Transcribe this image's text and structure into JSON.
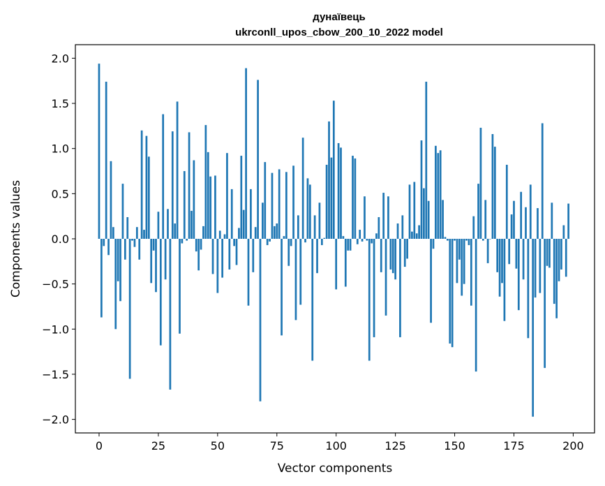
{
  "chart_data": {
    "type": "bar",
    "title": "дунаївець",
    "subtitle": "ukrconll_upos_cbow_200_10_2022 model",
    "xlabel": "Vector components",
    "ylabel": "Components values",
    "xlim": [
      -10,
      209
    ],
    "ylim": [
      -2.15,
      2.15
    ],
    "xticks": [
      0,
      25,
      50,
      75,
      100,
      125,
      150,
      175,
      200
    ],
    "yticks": [
      -2.0,
      -1.5,
      -1.0,
      -0.5,
      0.0,
      0.5,
      1.0,
      1.5,
      2.0
    ],
    "bar_color": "#1f77b4",
    "grid": false,
    "values": [
      1.94,
      -0.87,
      -0.08,
      1.74,
      -0.18,
      0.86,
      0.13,
      -1.0,
      -0.47,
      -0.69,
      0.61,
      -0.23,
      0.24,
      -1.55,
      -0.02,
      -0.09,
      0.13,
      -0.23,
      1.2,
      0.1,
      1.14,
      0.91,
      -0.49,
      -0.13,
      -0.59,
      0.3,
      -1.18,
      1.38,
      -0.45,
      0.33,
      -1.67,
      1.19,
      0.17,
      1.52,
      -1.05,
      -0.05,
      0.75,
      -0.02,
      1.18,
      0.31,
      0.87,
      -0.14,
      -0.35,
      -0.12,
      0.14,
      1.26,
      0.96,
      0.69,
      -0.39,
      0.7,
      -0.6,
      0.09,
      -0.43,
      0.05,
      0.95,
      -0.34,
      0.55,
      -0.08,
      -0.29,
      0.12,
      0.92,
      0.32,
      1.89,
      -0.74,
      0.55,
      -0.37,
      0.13,
      1.76,
      -1.8,
      0.4,
      0.85,
      -0.07,
      -0.03,
      0.73,
      0.14,
      0.17,
      0.77,
      -1.07,
      0.03,
      0.74,
      -0.3,
      -0.08,
      0.81,
      -0.9,
      0.26,
      -0.73,
      1.12,
      -0.04,
      0.67,
      0.6,
      -1.35,
      0.26,
      -0.38,
      0.4,
      -0.07,
      0.01,
      0.82,
      1.3,
      0.9,
      1.53,
      -0.56,
      1.06,
      1.01,
      0.03,
      -0.53,
      -0.13,
      -0.13,
      0.92,
      0.89,
      -0.06,
      0.1,
      -0.03,
      0.47,
      -0.02,
      -1.35,
      -0.05,
      -1.09,
      0.06,
      0.24,
      -0.37,
      0.51,
      -0.85,
      0.47,
      -0.34,
      -0.38,
      -0.45,
      0.17,
      -1.09,
      0.26,
      -0.31,
      -0.22,
      0.6,
      0.08,
      0.63,
      0.06,
      0.15,
      1.09,
      0.56,
      1.74,
      0.42,
      -0.93,
      -0.11,
      1.03,
      0.95,
      0.98,
      0.43,
      0.02,
      -0.02,
      -1.16,
      -1.2,
      -0.02,
      -0.49,
      -0.23,
      -0.63,
      -0.5,
      -0.02,
      -0.07,
      -0.74,
      0.25,
      -1.47,
      0.61,
      1.23,
      -0.02,
      0.43,
      -0.27,
      0.0,
      1.16,
      1.02,
      -0.37,
      -0.64,
      -0.49,
      -0.91,
      0.82,
      -0.28,
      0.27,
      0.42,
      -0.33,
      -0.79,
      0.52,
      -0.45,
      0.35,
      -1.1,
      0.6,
      -1.97,
      -0.65,
      0.34,
      -0.6,
      1.28,
      -1.43,
      -0.3,
      -0.32,
      0.4,
      -0.72,
      -0.88,
      -0.47,
      -0.34,
      0.15,
      -0.42,
      0.39
    ]
  }
}
